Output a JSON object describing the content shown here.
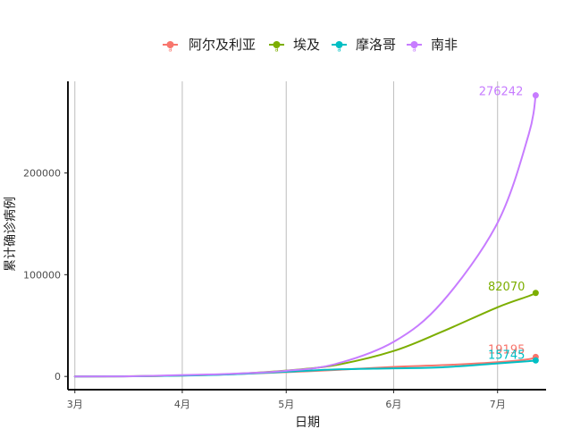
{
  "chart_data": {
    "type": "line",
    "title": "",
    "xlabel": "日期",
    "ylabel": "累计确诊病例",
    "legend_position": "top",
    "grid": {
      "vertical": true,
      "horizontal": false
    },
    "x_ticks": [
      "3月",
      "4月",
      "5月",
      "6月",
      "7月"
    ],
    "x_tick_dates": [
      "2020-03-01",
      "2020-04-01",
      "2020-05-01",
      "2020-06-01",
      "2020-07-01"
    ],
    "xlim": [
      "2020-02-28",
      "2020-07-15"
    ],
    "y_ticks": [
      0,
      100000,
      200000
    ],
    "ylim": [
      -13000,
      290000
    ],
    "series": [
      {
        "name": "阿尔及利亚",
        "color": "#F8766D",
        "end_label": "19195",
        "points": [
          [
            "2020-03-01",
            0
          ],
          [
            "2020-03-15",
            100
          ],
          [
            "2020-04-01",
            900
          ],
          [
            "2020-04-15",
            2100
          ],
          [
            "2020-05-01",
            4200
          ],
          [
            "2020-05-15",
            6300
          ],
          [
            "2020-06-01",
            9400
          ],
          [
            "2020-06-15",
            11100
          ],
          [
            "2020-07-01",
            14000
          ],
          [
            "2020-07-10",
            17000
          ],
          [
            "2020-07-12",
            19195
          ]
        ]
      },
      {
        "name": "埃及",
        "color": "#7CAE00",
        "end_label": "82070",
        "points": [
          [
            "2020-03-01",
            0
          ],
          [
            "2020-03-15",
            150
          ],
          [
            "2020-04-01",
            900
          ],
          [
            "2020-04-15",
            2400
          ],
          [
            "2020-05-01",
            5800
          ],
          [
            "2020-05-15",
            11000
          ],
          [
            "2020-06-01",
            25000
          ],
          [
            "2020-06-15",
            44000
          ],
          [
            "2020-07-01",
            68000
          ],
          [
            "2020-07-10",
            79000
          ],
          [
            "2020-07-12",
            82070
          ]
        ]
      },
      {
        "name": "摩洛哥",
        "color": "#00BFC4",
        "end_label": "15745",
        "points": [
          [
            "2020-03-01",
            0
          ],
          [
            "2020-03-15",
            50
          ],
          [
            "2020-04-01",
            800
          ],
          [
            "2020-04-15",
            2000
          ],
          [
            "2020-05-01",
            4600
          ],
          [
            "2020-05-15",
            6900
          ],
          [
            "2020-06-01",
            8000
          ],
          [
            "2020-06-15",
            9000
          ],
          [
            "2020-07-01",
            12800
          ],
          [
            "2020-07-10",
            15000
          ],
          [
            "2020-07-12",
            15745
          ]
        ]
      },
      {
        "name": "南非",
        "color": "#C77CFF",
        "end_label": "276242",
        "points": [
          [
            "2020-03-01",
            0
          ],
          [
            "2020-03-15",
            60
          ],
          [
            "2020-04-01",
            1400
          ],
          [
            "2020-04-15",
            2600
          ],
          [
            "2020-05-01",
            5600
          ],
          [
            "2020-05-15",
            12000
          ],
          [
            "2020-06-01",
            34000
          ],
          [
            "2020-06-15",
            73000
          ],
          [
            "2020-07-01",
            151000
          ],
          [
            "2020-07-10",
            238000
          ],
          [
            "2020-07-12",
            276242
          ]
        ]
      }
    ]
  }
}
